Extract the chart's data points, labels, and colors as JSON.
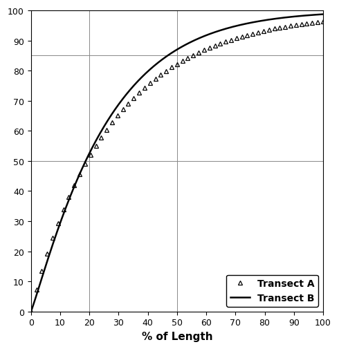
{
  "title": "",
  "xlabel": "% of Length",
  "xlim": [
    0,
    100
  ],
  "ylim": [
    0,
    100
  ],
  "xticks": [
    0,
    10,
    20,
    30,
    40,
    50,
    60,
    70,
    80,
    90,
    100
  ],
  "yticks": [
    0,
    10,
    20,
    30,
    40,
    50,
    60,
    70,
    80,
    90,
    100
  ],
  "ref_vlines": [
    20,
    50
  ],
  "ref_hlines": [
    50,
    85
  ],
  "line_color": "#000000",
  "marker_color": "#000000",
  "background_color": "#ffffff",
  "legend_loc": "lower right",
  "transect_A_label": "Transect A",
  "transect_B_label": "Transect B",
  "k_A": 0.055,
  "k_B": 0.075,
  "n_points_A": 55,
  "xlabel_fontsize": 11,
  "tick_fontsize": 9,
  "legend_fontsize": 10
}
